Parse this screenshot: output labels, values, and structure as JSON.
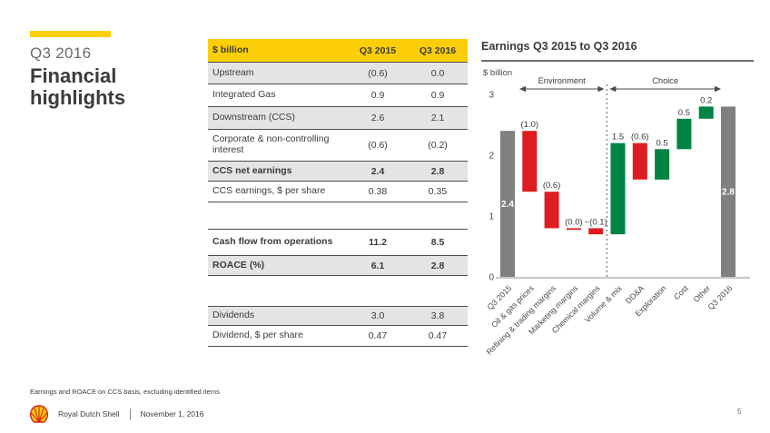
{
  "page": {
    "kicker": "Q3 2016",
    "title": "Financial highlights",
    "footnote": "Earnings and ROACE on CCS basis, excluding identified items",
    "page_number": "5"
  },
  "footer": {
    "company": "Royal Dutch Shell",
    "date": "November 1, 2016",
    "logo": "shell-pecten-icon"
  },
  "colors": {
    "shell_yellow": "#FBCE07",
    "shell_red": "#DD1D21",
    "shell_green": "#008443",
    "bar_gray": "#808080",
    "row_shade": "#e4e4e4",
    "text_dark": "#3b3b3b"
  },
  "table": {
    "header": {
      "col0": "$ billion",
      "col1": "Q3 2015",
      "col2": "Q3 2016"
    },
    "rows": [
      {
        "label": "Upstream",
        "q3_2015": "(0.6)",
        "q3_2016": "0.0"
      },
      {
        "label": "Integrated Gas",
        "q3_2015": "0.9",
        "q3_2016": "0.9"
      },
      {
        "label": "Downstream (CCS)",
        "q3_2015": "2.6",
        "q3_2016": "2.1"
      },
      {
        "label": "Corporate & non-controlling interest",
        "q3_2015": "(0.6)",
        "q3_2016": "(0.2)"
      },
      {
        "label": "CCS net earnings",
        "q3_2015": "2.4",
        "q3_2016": "2.8"
      },
      {
        "label": "CCS earnings, $ per share",
        "q3_2015": "0.38",
        "q3_2016": "0.35"
      },
      {
        "label": "Cash flow from operations",
        "q3_2015": "11.2",
        "q3_2016": "8.5"
      },
      {
        "label": "ROACE (%)",
        "q3_2015": "6.1",
        "q3_2016": "2.8"
      },
      {
        "label": "Dividends",
        "q3_2015": "3.0",
        "q3_2016": "3.8"
      },
      {
        "label": "Dividend, $ per share",
        "q3_2015": "0.47",
        "q3_2016": "0.47"
      }
    ]
  },
  "chart_data": {
    "type": "waterfall",
    "title": "Earnings Q3 2015 to Q3 2016",
    "ylabel": "$ billion",
    "ylim": [
      0,
      3
    ],
    "yticks": [
      0,
      1,
      2,
      3
    ],
    "grid": false,
    "legend": false,
    "annotations": {
      "left_section": "Environment",
      "right_section": "Choice",
      "divider_after": "Chemical margins"
    },
    "bars": [
      {
        "label": "Q3 2015",
        "sign": "total",
        "value": 2.4,
        "label_value": "2.4"
      },
      {
        "label": "Oil & gas prices",
        "sign": "negative",
        "value": -1.0,
        "label_value": "(1.0)"
      },
      {
        "label": "Refining & trading margins",
        "sign": "negative",
        "value": -0.6,
        "label_value": "(0.6)"
      },
      {
        "label": "Marketing margins",
        "sign": "negative",
        "value": 0.0,
        "label_value": "(0.0)"
      },
      {
        "label": "Chemical margins",
        "sign": "negative",
        "value": -0.1,
        "label_value": "~(0.1)"
      },
      {
        "label": "Volume & mix",
        "sign": "positive",
        "value": 1.5,
        "label_value": "1.5"
      },
      {
        "label": "DD&A",
        "sign": "negative",
        "value": -0.6,
        "label_value": "(0.6)"
      },
      {
        "label": "Exploration",
        "sign": "positive",
        "value": 0.5,
        "label_value": "0.5"
      },
      {
        "label": "Cost",
        "sign": "positive",
        "value": 0.5,
        "label_value": "0.5"
      },
      {
        "label": "Other",
        "sign": "positive",
        "value": 0.2,
        "label_value": "0.2"
      },
      {
        "label": "Q3 2016",
        "sign": "total",
        "value": 2.8,
        "label_value": "2.8"
      }
    ]
  }
}
